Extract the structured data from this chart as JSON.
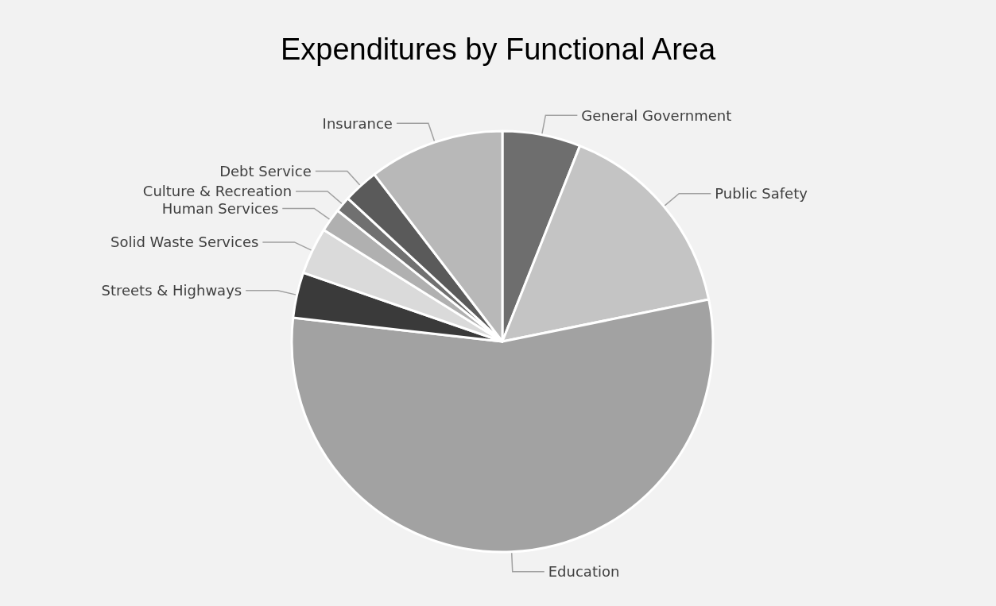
{
  "chart_data": {
    "type": "pie",
    "title": "Expenditures by Functional Area",
    "categories": [
      "General Government",
      "Public Safety",
      "Education",
      "Streets & Highways",
      "Solid Waste Services",
      "Human Services",
      "Culture & Recreation",
      "Debt Service",
      "Insurance"
    ],
    "values": [
      6,
      15.8,
      55,
      3.5,
      3.6,
      1.8,
      1.2,
      2.7,
      10.4
    ],
    "colors": [
      "#6e6e6e",
      "#c4c4c4",
      "#a2a2a2",
      "#3a3a3a",
      "#dadada",
      "#b0b0b0",
      "#707070",
      "#5a5a5a",
      "#b8b8b8"
    ],
    "legend": false
  }
}
